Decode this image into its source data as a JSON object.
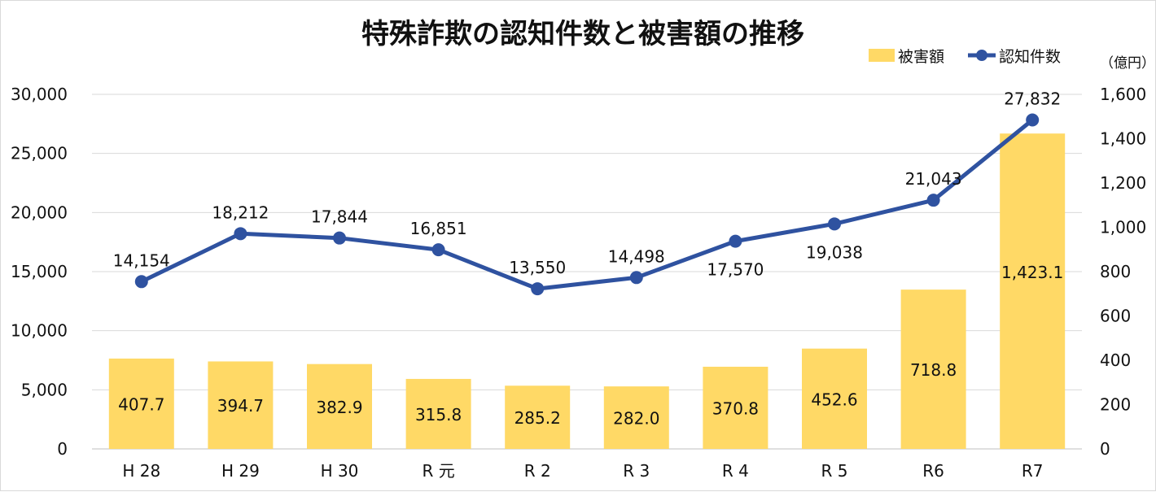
{
  "chart_data": {
    "type": "bar+line",
    "title": "特殊詐欺の認知件数と被害額の推移",
    "categories": [
      "H28",
      "H29",
      "H30",
      "R元",
      "R2",
      "R3",
      "R4",
      "R5",
      "R6",
      "R7"
    ],
    "category_labels": [
      "H 28",
      "H 29",
      "H 30",
      "R 元",
      "R 2",
      "R 3",
      "R 4",
      "R 5",
      "R6",
      "R7"
    ],
    "series": [
      {
        "name": "被害額",
        "type": "bar",
        "axis": "right",
        "values": [
          407.7,
          394.7,
          382.9,
          315.8,
          285.2,
          282.0,
          370.8,
          452.6,
          718.8,
          1423.1
        ],
        "labels": [
          "407.7",
          "394.7",
          "382.9",
          "315.8",
          "285.2",
          "282.0",
          "370.8",
          "452.6",
          "718.8",
          "1,423.1"
        ],
        "color": "#FFD966"
      },
      {
        "name": "認知件数",
        "type": "line",
        "axis": "left",
        "values": [
          14154,
          18212,
          17844,
          16851,
          13550,
          14498,
          17570,
          19038,
          21043,
          27832
        ],
        "labels": [
          "14,154",
          "18,212",
          "17,844",
          "16,851",
          "13,550",
          "14,498",
          "17,570",
          "19,038",
          "21,043",
          "27,832"
        ],
        "color": "#2F52A0"
      }
    ],
    "y_left": {
      "range": [
        0,
        30000
      ],
      "ticks": [
        0,
        5000,
        10000,
        15000,
        20000,
        25000,
        30000
      ],
      "tick_labels": [
        "0",
        "5,000",
        "10,000",
        "15,000",
        "20,000",
        "25,000",
        "30,000"
      ]
    },
    "y_right": {
      "unit_label": "（億円）",
      "range": [
        0,
        1600
      ],
      "ticks": [
        0,
        200,
        400,
        600,
        800,
        1000,
        1200,
        1400,
        1600
      ],
      "tick_labels": [
        "0",
        "200",
        "400",
        "600",
        "800",
        "1,000",
        "1,200",
        "1,400",
        "1,600"
      ]
    },
    "grid": true,
    "legend_position": "top-right"
  }
}
